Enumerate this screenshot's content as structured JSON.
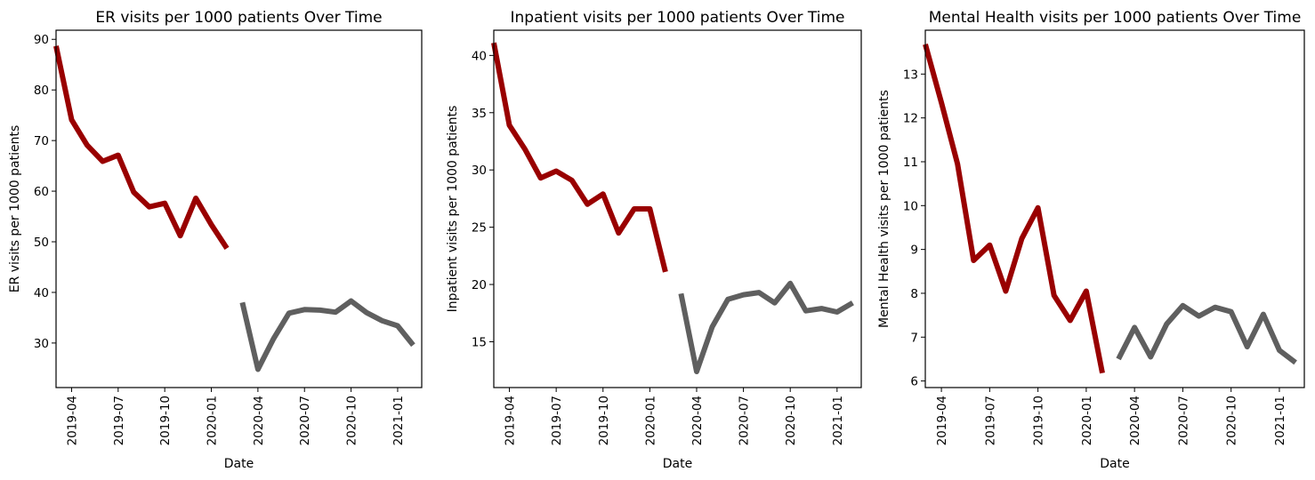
{
  "colors": {
    "pre": "#990000",
    "post": "#5f5f5f"
  },
  "chart_data": [
    {
      "type": "line",
      "title": "ER visits per 1000 patients Over Time",
      "xlabel": "Date",
      "ylabel": "ER visits per 1000 patients",
      "ylim": [
        21.2,
        91.8
      ],
      "yticks": [
        "30",
        "40",
        "50",
        "60",
        "70",
        "80",
        "90"
      ],
      "xticks": [
        "2019-04",
        "2019-07",
        "2019-10",
        "2020-01",
        "2020-04",
        "2020-07",
        "2020-10",
        "2021-01"
      ],
      "series": [
        {
          "color": "pre",
          "x": [
            "2019-03",
            "2019-04",
            "2019-05",
            "2019-06",
            "2019-07",
            "2019-08",
            "2019-09",
            "2019-10",
            "2019-11",
            "2019-12",
            "2020-01",
            "2020-02"
          ],
          "values": [
            88.7,
            74.1,
            69.1,
            65.9,
            67.1,
            59.8,
            56.9,
            57.6,
            51.2,
            58.6,
            53.4,
            48.7
          ]
        },
        {
          "color": "post",
          "x": [
            "2020-03",
            "2020-04",
            "2020-05",
            "2020-06",
            "2020-07",
            "2020-08",
            "2020-09",
            "2020-10",
            "2020-11",
            "2020-12",
            "2021-01",
            "2021-02"
          ],
          "values": [
            38.0,
            24.8,
            30.8,
            35.9,
            36.6,
            36.5,
            36.1,
            38.3,
            36.0,
            34.4,
            33.4,
            29.6
          ]
        }
      ]
    },
    {
      "type": "line",
      "title": "Inpatient visits per 1000 patients Over Time",
      "xlabel": "Date",
      "ylabel": "Inpatient visits per 1000 patients",
      "ylim": [
        11.0,
        42.2
      ],
      "yticks": [
        "15",
        "20",
        "25",
        "30",
        "35",
        "40"
      ],
      "xticks": [
        "2019-04",
        "2019-07",
        "2019-10",
        "2020-01",
        "2020-04",
        "2020-07",
        "2020-10",
        "2021-01"
      ],
      "series": [
        {
          "color": "pre",
          "x": [
            "2019-03",
            "2019-04",
            "2019-05",
            "2019-06",
            "2019-07",
            "2019-08",
            "2019-09",
            "2019-10",
            "2019-11",
            "2019-12",
            "2020-01",
            "2020-02"
          ],
          "values": [
            41.1,
            33.9,
            31.8,
            29.3,
            29.9,
            29.1,
            27.0,
            27.9,
            24.5,
            26.6,
            26.6,
            21.1
          ]
        },
        {
          "color": "post",
          "x": [
            "2020-03",
            "2020-04",
            "2020-05",
            "2020-06",
            "2020-07",
            "2020-08",
            "2020-09",
            "2020-10",
            "2020-11",
            "2020-12",
            "2021-01",
            "2021-02"
          ],
          "values": [
            19.2,
            12.4,
            16.3,
            18.7,
            19.1,
            19.3,
            18.4,
            20.1,
            17.7,
            17.9,
            17.6,
            18.4
          ]
        }
      ]
    },
    {
      "type": "line",
      "title": "Mental Health visits per 1000 patients Over Time",
      "xlabel": "Date",
      "ylabel": "Mental Health visits per 1000 patients",
      "ylim": [
        5.85,
        14.0
      ],
      "yticks": [
        "6",
        "7",
        "8",
        "9",
        "10",
        "11",
        "12",
        "13"
      ],
      "xticks": [
        "2019-04",
        "2019-07",
        "2019-10",
        "2020-01",
        "2020-04",
        "2020-07",
        "2020-10",
        "2021-01"
      ],
      "series": [
        {
          "color": "pre",
          "x": [
            "2019-03",
            "2019-04",
            "2019-05",
            "2019-06",
            "2019-07",
            "2019-08",
            "2019-09",
            "2019-10",
            "2019-11",
            "2019-12",
            "2020-01",
            "2020-02"
          ],
          "values": [
            13.68,
            12.35,
            10.95,
            8.75,
            9.1,
            8.05,
            9.25,
            9.95,
            7.95,
            7.38,
            8.05,
            6.18
          ]
        },
        {
          "color": "post",
          "x": [
            "2020-03",
            "2020-04",
            "2020-05",
            "2020-06",
            "2020-07",
            "2020-08",
            "2020-09",
            "2020-10",
            "2020-11",
            "2020-12",
            "2021-01",
            "2021-02"
          ],
          "values": [
            6.5,
            7.22,
            6.55,
            7.3,
            7.72,
            7.48,
            7.68,
            7.58,
            6.78,
            7.52,
            6.7,
            6.42
          ]
        }
      ]
    }
  ]
}
